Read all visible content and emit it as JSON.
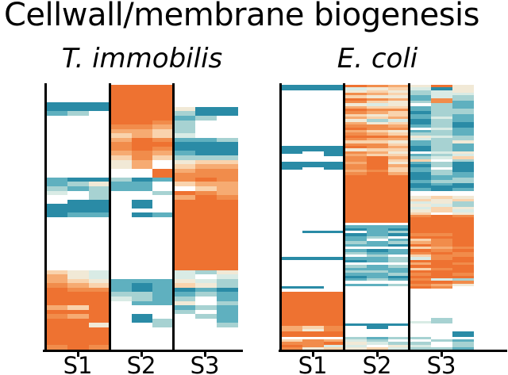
{
  "title": "Cellwall/membrane biogenesis",
  "palette": {
    ".": "#ffffff",
    "a": "#d9ebe5",
    "b": "#a7d2d2",
    "c": "#5fb0bf",
    "d": "#2a8ba6",
    "w": "#f1e9d6",
    "x": "#f9d3ad",
    "y": "#f6ab72",
    "z": "#f18c4b",
    "o": "#ee7231"
  },
  "value_scale": {
    ".": null,
    "d": -1.0,
    "c": -0.65,
    "b": -0.4,
    "a": -0.15,
    "w": 0.1,
    "x": 0.3,
    "y": 0.55,
    "z": 0.8,
    "o": 1.0
  },
  "chart_data": [
    {
      "type": "heatmap",
      "title": "T. immobilis",
      "x_categories": [
        "S1",
        "S2",
        "S3"
      ],
      "subcolumns_per_category": 3,
      "n_rows": 60,
      "n_columns": 9,
      "grid": false,
      "colormap": "diverging teal (low) to orange (high), white = absent",
      "cell_key": "each row string = 9 cells: 3 subcolumns for S1, then S2, then S3; letters map to palette/value_scale",
      "rows": [
        "...ooo...",
        "...ooo...",
        "...ooo...",
        "...ooo...",
        "dddooo...",
        "dddooowdd",
        "cb.ooobdd",
        "...ooocb.",
        "...oozb..",
        "...zzyb..",
        "...yyxb..",
        "...xyxa..",
        "...yozccb",
        "...zooddd",
        "...zozddd",
        "...yzycdd",
        "...xzxbbb",
        "...wy.wxx",
        "...wy.xyy",
        ".....oyzz",
        ".....ozzz",
        "cddbdczoz",
        "cbwcc.xyy",
        "bcbcc..xy",
        "a.b..bozy",
        "..b...yoz",
        ".dd.d.ooo",
        "ddd.d.ooo",
        "ddd...ooo",
        "dcc.dcooo",
        "......ooo",
        "......ooo",
        "......ooo",
        "......ooo",
        "......ooo",
        "......ooo",
        "......ooo",
        "......ooo",
        "......ooo",
        "......ooo",
        "......ooo",
        "......ooo",
        "xwa...abw",
        "ywa...a.a",
        "yxwcccwab",
        "zyxcdcxwb",
        "ozzcdcdcd",
        "ooobbccbc",
        "oooabcb.c",
        "ooo.ccw.b",
        "yxo...cbc",
        "ooo...b.c",
        "zyo.d..bc",
        "ooo.db..c",
        "oow..b..b",
        "ooo......",
        "ooo......",
        "ooo......",
        "ooo......",
        "zoz......"
      ]
    },
    {
      "type": "heatmap",
      "title": "E. coli",
      "x_categories": [
        "S1",
        "S2",
        "S3"
      ],
      "subcolumns_per_category": 3,
      "n_rows": 100,
      "n_columns": 9,
      "grid": false,
      "colormap": "diverging teal (low) to orange (high), white = absent",
      "cell_key": "each row string = 9 cells: 3 subcolumns for S1, then S2, then S3; letters map to palette/value_scale",
      "rows": [
        "dddozywow",
        "dddawxadw",
        "...wxwbaw",
        "...zyxbaa",
        "...xwwcab",
        "...ozyczb",
        "...zxwbzc",
        "...waw.bc",
        "...yxxcbc",
        "...ozzcbb",
        "...zyxdbb",
        "...xwxcbc",
        "...yxycac",
        "...wbadbc",
        "...ywxdbd",
        "...zzycbd",
        "...ozz.ac",
        "...yxwcbc",
        "...zyxbbc",
        "...oozwab",
        "...zyyabb",
        "...xxwcbw",
        "...zzxcbc",
        "dddozydbc",
        "dddwxxdbc",
        "d.dzyw.aw",
        "..dyxxcba",
        "...zoybax",
        "...zoxx.b",
        "dddyowcbd",
        "dddzoydbd",
        "d.dzoxc.d",
        "...yzxcbd",
        "...zoydbc",
        "...ooodcc",
        "...ooodcb",
        "...ooocbb",
        "...ooodcd",
        "...oooddd",
        "...ooocdc",
        "...ooo...",
        "...ooo...",
        "...ooowxw",
        "...oooxwx",
        "...oooawb",
        "...ooowab",
        "...oooaxw",
        "...ooowxa",
        "...ooox.w",
        "...ooozoz",
        "...oooooo",
        "...oooooo",
        "......ooo",
        "...cccooo",
        "...dcdooo",
        ".dd.cbooo",
        "...dcdzzo",
        "...cb.ooo",
        "...c.cxzo",
        "...bcbyzo",
        "...ccdozo",
        "......xyz",
        "...cdcozo",
        "...bcczoz",
        "....b.xzz",
        "dddccbazo",
        "...dcbooo",
        "......yoz",
        "...bcbooo",
        "...cccxzo",
        "...bbcooo",
        "...ccbzoz",
        "...dcdooo",
        "...cbczab",
        "......ooz",
        "...ccbzyw",
        "dd....oz.",
        ".........",
        "ooo......",
        "ooo......",
        "ooo......",
        "ooo......",
        "ooo......",
        "ooo......",
        "ooo......",
        "ooo......",
        "ooo......",
        "ooo......",
        "ooo....b.",
        "ooo...ab.",
        "oooddd...",
        "yxz.d....",
        "ywz......",
        "ooo.....d",
        "ooo.....d",
        "...bcbb..",
        "xzyab..bc",
        "zzowabb.b",
        "ozaa.wa.b",
        "zwxwxabbc"
      ]
    }
  ]
}
